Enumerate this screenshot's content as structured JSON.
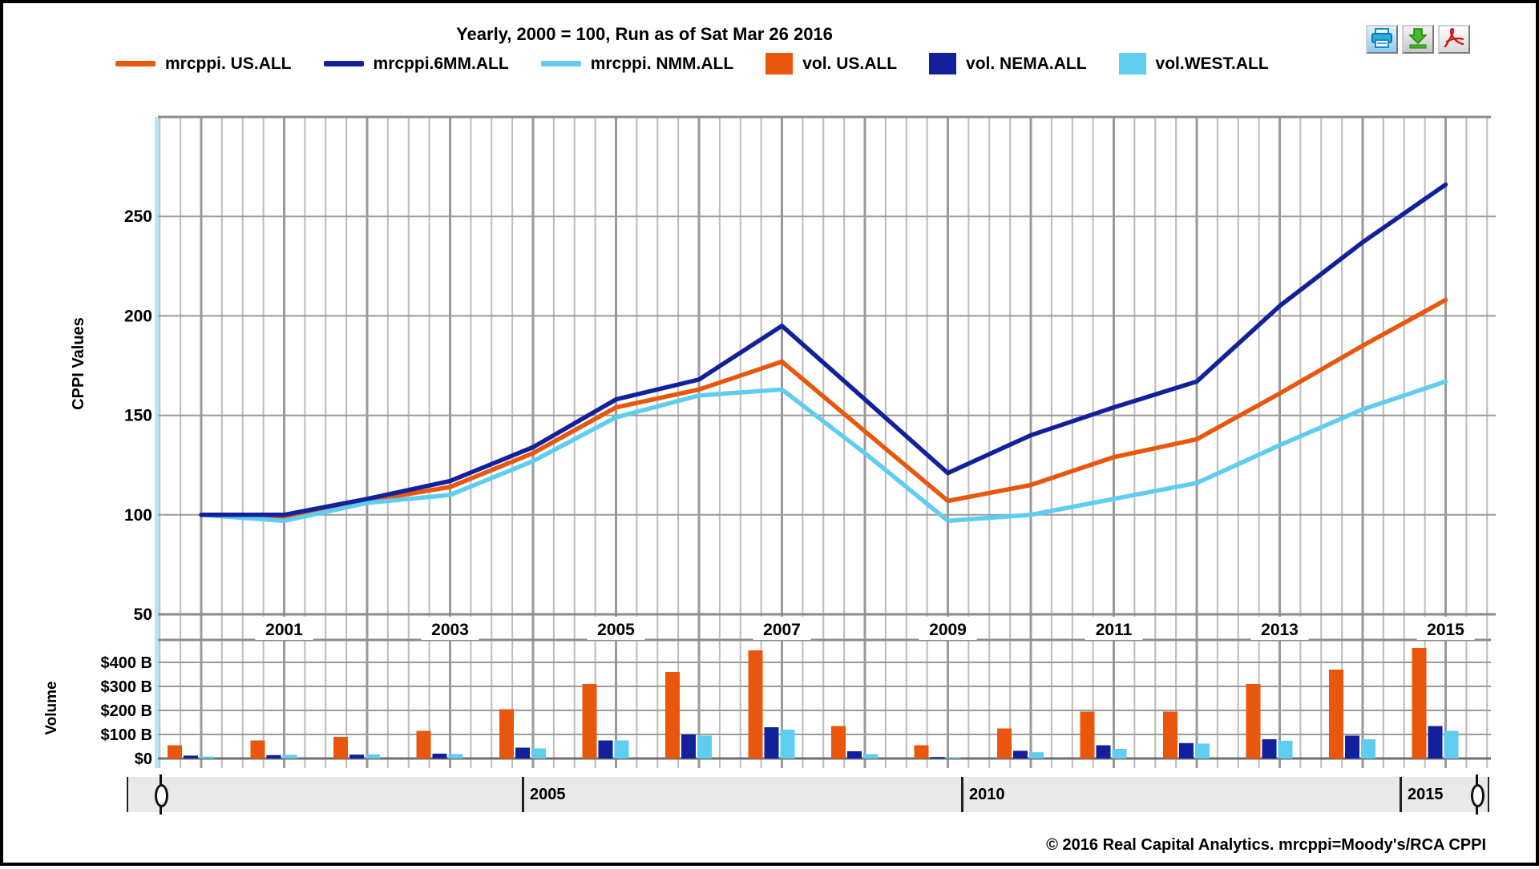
{
  "title": "Yearly, 2000 = 100, Run as of Sat Mar 26 2016",
  "toolbar": {
    "print_icon": "printer-icon",
    "download_icon": "download-icon",
    "pdf_icon": "adobe-pdf-icon"
  },
  "colors": {
    "us_orange": "#E8570B",
    "nema_navy": "#12219B",
    "west_lightblue": "#5FCDEF",
    "grid_major": "#9a9a9a",
    "grid_minor": "#bcbcbc",
    "axis_accent_lightblue": "#b9e3f6"
  },
  "chart_data": {
    "type": "line+bar",
    "x": [
      2000,
      2001,
      2002,
      2003,
      2004,
      2005,
      2006,
      2007,
      2008,
      2009,
      2010,
      2011,
      2012,
      2013,
      2014,
      2015
    ],
    "xtick_labels": [
      "2001",
      "2003",
      "2005",
      "2007",
      "2009",
      "2011",
      "2013",
      "2015"
    ],
    "cppi": {
      "ylabel": "CPPI Values",
      "ytick_labels": [
        "250",
        "200",
        "150",
        "100",
        "50"
      ],
      "yticks": [
        250,
        200,
        150,
        100,
        50
      ],
      "ylim": [
        50,
        300
      ],
      "series": [
        {
          "name": "mrcppi. US.ALL",
          "type": "line",
          "color": "#E8570B",
          "values": [
            100,
            99,
            107,
            114,
            131,
            154,
            163,
            177,
            142,
            107,
            115,
            129,
            138,
            161,
            185,
            208
          ]
        },
        {
          "name": "mrcppi.6MM.ALL",
          "type": "line",
          "color": "#12219B",
          "values": [
            100,
            100,
            108,
            117,
            134,
            158,
            168,
            195,
            158,
            121,
            140,
            154,
            167,
            205,
            237,
            266
          ]
        },
        {
          "name": "mrcppi. NMM.ALL",
          "type": "line",
          "color": "#5FCDEF",
          "values": [
            100,
            97,
            106,
            110,
            127,
            149,
            160,
            163,
            131,
            97,
            100,
            108,
            116,
            135,
            153,
            167
          ]
        }
      ]
    },
    "volume": {
      "ylabel": "Volume",
      "ytick_labels": [
        "$400 B",
        "$300 B",
        "$200 B",
        "$100 B",
        "$0"
      ],
      "yticks": [
        400,
        300,
        200,
        100,
        0
      ],
      "unit": "billions USD",
      "series": [
        {
          "name": "vol. US.ALL",
          "type": "bar",
          "color": "#E8570B",
          "values": [
            55,
            75,
            90,
            115,
            205,
            310,
            360,
            450,
            135,
            55,
            125,
            195,
            195,
            310,
            370,
            460
          ]
        },
        {
          "name": "vol. NEMA.ALL",
          "type": "bar",
          "color": "#12219B",
          "values": [
            12,
            14,
            16,
            20,
            45,
            75,
            100,
            130,
            30,
            6,
            32,
            55,
            64,
            80,
            95,
            135
          ]
        },
        {
          "name": "vol.WEST.ALL",
          "type": "bar",
          "color": "#5FCDEF",
          "values": [
            8,
            15,
            17,
            18,
            42,
            75,
            95,
            120,
            18,
            4,
            26,
            40,
            62,
            74,
            80,
            115
          ]
        }
      ]
    }
  },
  "slider": {
    "tick_labels": [
      "2005",
      "2010",
      "2015"
    ]
  },
  "footer": "© 2016 Real Capital Analytics. mrcppi=Moody's/RCA CPPI"
}
